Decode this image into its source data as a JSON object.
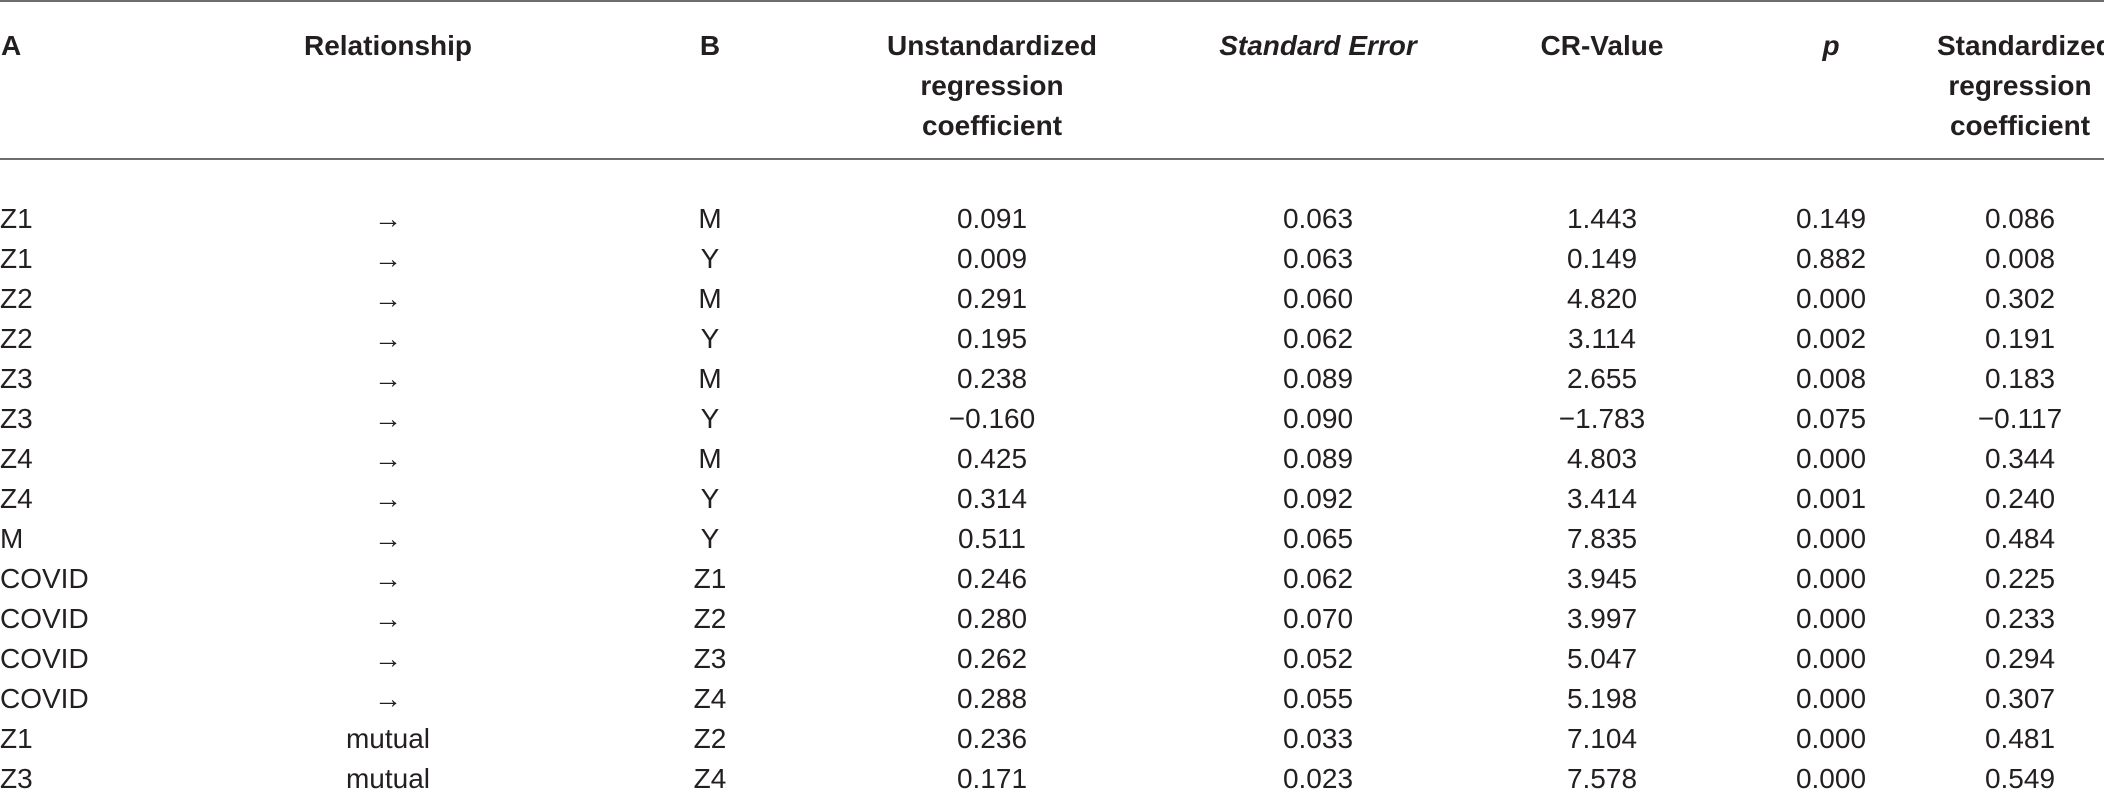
{
  "table": {
    "headers": {
      "a": "A",
      "relationship": "Relationship",
      "b": "B",
      "unstd": [
        "Unstandardized",
        "regression",
        "coefficient"
      ],
      "se": "Standard Error",
      "cr": "CR-Value",
      "p": "p",
      "std": [
        "Standardized",
        "regression",
        "coefficient"
      ]
    },
    "rows": [
      {
        "a": "Z1",
        "rel": "→",
        "b": "M",
        "unstd": "0.091",
        "se": "0.063",
        "cr": "1.443",
        "p": "0.149",
        "std": "0.086"
      },
      {
        "a": "Z1",
        "rel": "→",
        "b": "Y",
        "unstd": "0.009",
        "se": "0.063",
        "cr": "0.149",
        "p": "0.882",
        "std": "0.008"
      },
      {
        "a": "Z2",
        "rel": "→",
        "b": "M",
        "unstd": "0.291",
        "se": "0.060",
        "cr": "4.820",
        "p": "0.000",
        "std": "0.302"
      },
      {
        "a": "Z2",
        "rel": "→",
        "b": "Y",
        "unstd": "0.195",
        "se": "0.062",
        "cr": "3.114",
        "p": "0.002",
        "std": "0.191"
      },
      {
        "a": "Z3",
        "rel": "→",
        "b": "M",
        "unstd": "0.238",
        "se": "0.089",
        "cr": "2.655",
        "p": "0.008",
        "std": "0.183"
      },
      {
        "a": "Z3",
        "rel": "→",
        "b": "Y",
        "unstd": "−0.160",
        "se": "0.090",
        "cr": "−1.783",
        "p": "0.075",
        "std": "−0.117"
      },
      {
        "a": "Z4",
        "rel": "→",
        "b": "M",
        "unstd": "0.425",
        "se": "0.089",
        "cr": "4.803",
        "p": "0.000",
        "std": "0.344"
      },
      {
        "a": "Z4",
        "rel": "→",
        "b": "Y",
        "unstd": "0.314",
        "se": "0.092",
        "cr": "3.414",
        "p": "0.001",
        "std": "0.240"
      },
      {
        "a": "M",
        "rel": "→",
        "b": "Y",
        "unstd": "0.511",
        "se": "0.065",
        "cr": "7.835",
        "p": "0.000",
        "std": "0.484"
      },
      {
        "a": "COVID",
        "rel": "→",
        "b": "Z1",
        "unstd": "0.246",
        "se": "0.062",
        "cr": "3.945",
        "p": "0.000",
        "std": "0.225"
      },
      {
        "a": "COVID",
        "rel": "→",
        "b": "Z2",
        "unstd": "0.280",
        "se": "0.070",
        "cr": "3.997",
        "p": "0.000",
        "std": "0.233"
      },
      {
        "a": "COVID",
        "rel": "→",
        "b": "Z3",
        "unstd": "0.262",
        "se": "0.052",
        "cr": "5.047",
        "p": "0.000",
        "std": "0.294"
      },
      {
        "a": "COVID",
        "rel": "→",
        "b": "Z4",
        "unstd": "0.288",
        "se": "0.055",
        "cr": "5.198",
        "p": "0.000",
        "std": "0.307"
      },
      {
        "a": "Z1",
        "rel": "mutual",
        "b": "Z2",
        "unstd": "0.236",
        "se": "0.033",
        "cr": "7.104",
        "p": "0.000",
        "std": "0.481"
      },
      {
        "a": "Z3",
        "rel": "mutual",
        "b": "Z4",
        "unstd": "0.171",
        "se": "0.023",
        "cr": "7.578",
        "p": "0.000",
        "std": "0.549"
      }
    ]
  }
}
